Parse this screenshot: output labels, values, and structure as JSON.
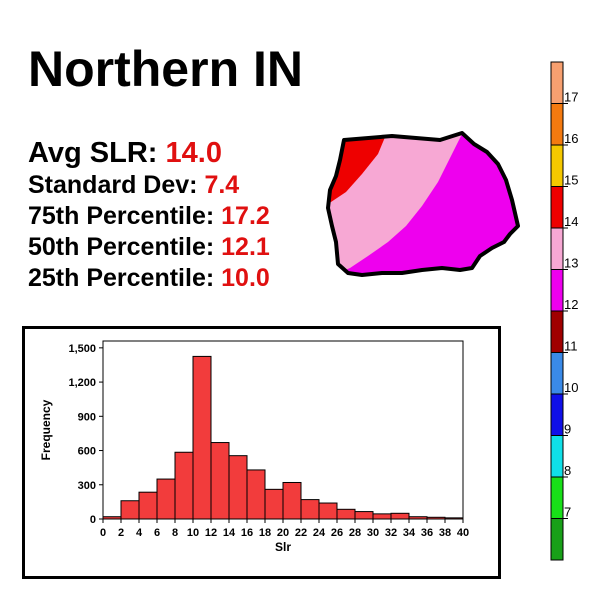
{
  "title": "Northern IN",
  "stats": [
    {
      "label": "Avg SLR:",
      "value": "14.0"
    },
    {
      "label": "Standard Dev:",
      "value": "7.4"
    },
    {
      "label": "75th Percentile:",
      "value": "17.2"
    },
    {
      "label": "50th Percentile:",
      "value": "12.1"
    },
    {
      "label": "25th Percentile:",
      "value": "10.0"
    }
  ],
  "colors": {
    "stat_value": "#e01010",
    "bar_fill": "#f23c3c",
    "map_outline": "#000000"
  },
  "map": {
    "icon": "northern-indiana-region-map",
    "colors": [
      "#ee0000",
      "#f7a8d4",
      "#ee00ee"
    ]
  },
  "colorbar": {
    "labels": [
      "17",
      "16",
      "15",
      "14",
      "13",
      "12",
      "11",
      "10",
      "9",
      "8",
      "7"
    ],
    "colors": [
      "#f7a070",
      "#f47a10",
      "#f5c800",
      "#ee0000",
      "#f7a8d4",
      "#ee00ee",
      "#a00000",
      "#3a8ae8",
      "#1010e8",
      "#10e0e8",
      "#18e018",
      "#18a018"
    ]
  },
  "chart_data": {
    "type": "bar",
    "title": "",
    "xlabel": "Slr",
    "ylabel": "Frequency",
    "bin_edges": [
      0,
      2,
      4,
      6,
      8,
      10,
      12,
      14,
      16,
      18,
      20,
      22,
      24,
      26,
      28,
      30,
      32,
      34,
      36,
      38,
      40
    ],
    "values": [
      20,
      160,
      235,
      350,
      585,
      1425,
      670,
      555,
      430,
      260,
      320,
      170,
      140,
      85,
      65,
      45,
      50,
      20,
      15,
      10
    ],
    "xlim": [
      0,
      40
    ],
    "ylim": [
      0,
      1560
    ],
    "x_ticks": [
      "0",
      "2",
      "4",
      "6",
      "8",
      "10",
      "12",
      "14",
      "16",
      "18",
      "20",
      "22",
      "24",
      "26",
      "28",
      "30",
      "32",
      "34",
      "36",
      "38",
      "40"
    ],
    "y_ticks": [
      {
        "value": 0,
        "label": "0"
      },
      {
        "value": 300,
        "label": "300"
      },
      {
        "value": 600,
        "label": "600"
      },
      {
        "value": 900,
        "label": "900"
      },
      {
        "value": 1200,
        "label": "1,200"
      },
      {
        "value": 1500,
        "label": "1,500"
      }
    ],
    "grid": false
  }
}
